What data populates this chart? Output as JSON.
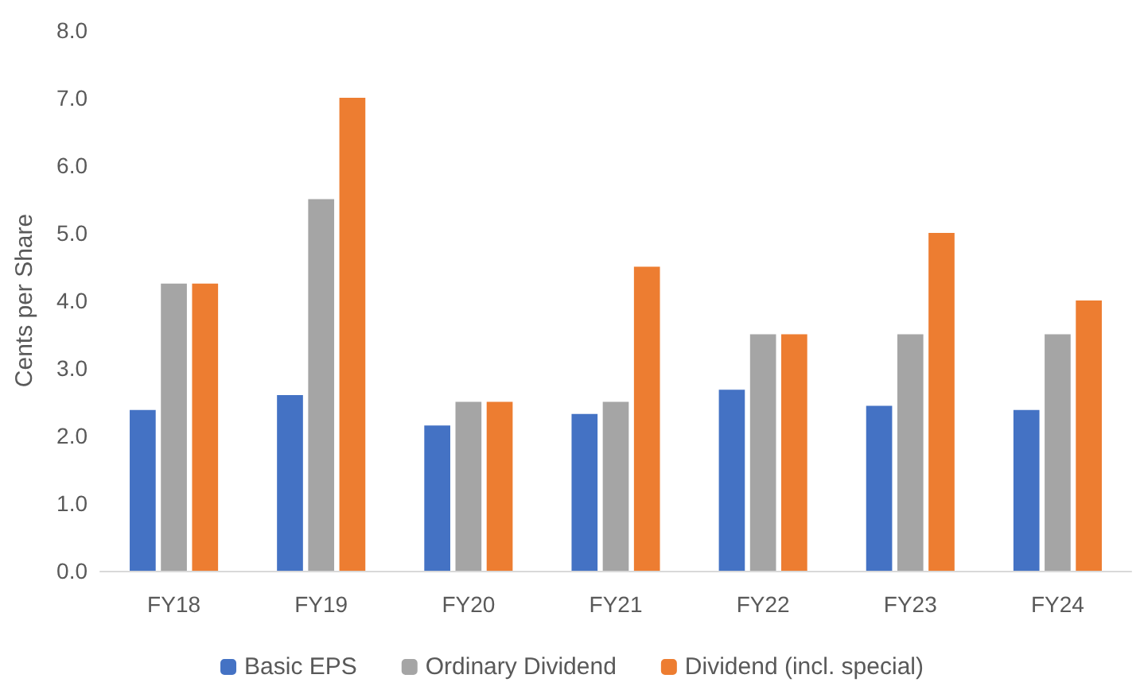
{
  "chart_data": {
    "type": "bar",
    "ylabel": "Cents per Share",
    "categories": [
      "FY18",
      "FY19",
      "FY20",
      "FY21",
      "FY22",
      "FY23",
      "FY24"
    ],
    "series": [
      {
        "name": "Basic EPS",
        "color": "#4472c4",
        "values": [
          2.38,
          2.6,
          2.15,
          2.32,
          2.68,
          2.44,
          2.38
        ]
      },
      {
        "name": "Ordinary Dividend",
        "color": "#a5a5a5",
        "values": [
          4.25,
          5.5,
          2.5,
          2.5,
          3.5,
          3.5,
          3.5
        ]
      },
      {
        "name": "Dividend (incl. special)",
        "color": "#ed7d31",
        "values": [
          4.25,
          7.0,
          2.5,
          4.5,
          3.5,
          5.0,
          4.0
        ]
      }
    ],
    "ylim": [
      0,
      8
    ],
    "yticks": [
      {
        "value": 0,
        "label": "0.0"
      },
      {
        "value": 1,
        "label": "1.0"
      },
      {
        "value": 2,
        "label": "2.0"
      },
      {
        "value": 3,
        "label": "3.0"
      },
      {
        "value": 4,
        "label": "4.0"
      },
      {
        "value": 5,
        "label": "5.0"
      },
      {
        "value": 6,
        "label": "6.0"
      },
      {
        "value": 7,
        "label": "7.0"
      },
      {
        "value": 8,
        "label": "8.0"
      }
    ],
    "grid": false,
    "legend": "bottom"
  }
}
